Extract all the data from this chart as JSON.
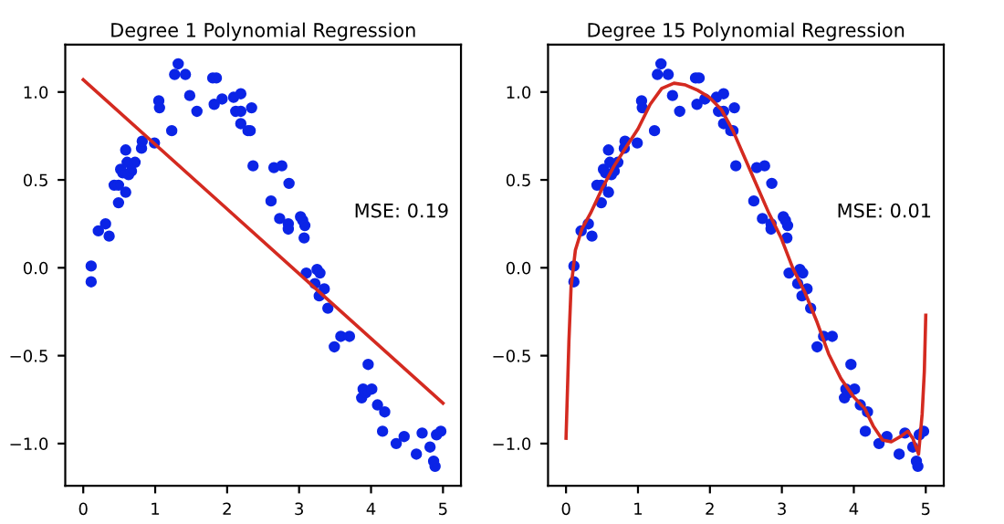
{
  "chart_data": [
    {
      "type": "scatter",
      "title": "Degree 1 Polynomial Regression",
      "annotations": [
        "MSE: 0.19"
      ],
      "xlim": [
        -0.25,
        5.25
      ],
      "ylim": [
        -1.24,
        1.27
      ],
      "xticks": [
        0,
        1,
        2,
        3,
        4,
        5
      ],
      "yticks": [
        {
          "value": -1.0,
          "label": "−1.0"
        },
        {
          "value": -0.5,
          "label": "−0.5"
        },
        {
          "value": 0,
          "label": "0.0"
        },
        {
          "value": 0.5,
          "label": "0.5"
        },
        {
          "value": 1.0,
          "label": "1.0"
        }
      ],
      "grid": false,
      "legend": false,
      "series": [
        {
          "marker": "circle",
          "color": "#0b24e6",
          "x": [
            0.11,
            0.11,
            0.21,
            0.31,
            0.36,
            0.43,
            0.49,
            0.49,
            0.52,
            0.55,
            0.59,
            0.59,
            0.61,
            0.63,
            0.67,
            0.72,
            0.81,
            0.82,
            0.99,
            1.05,
            1.06,
            1.23,
            1.27,
            1.32,
            1.42,
            1.48,
            1.58,
            1.8,
            1.85,
            1.82,
            1.93,
            2.09,
            2.19,
            2.12,
            2.19,
            2.19,
            2.29,
            2.32,
            2.34,
            2.36,
            2.61,
            2.65,
            2.76,
            2.73,
            2.85,
            2.85,
            2.86,
            3.02,
            3.05,
            3.08,
            3.07,
            3.1,
            3.22,
            3.25,
            3.29,
            3.28,
            3.35,
            3.4,
            3.49,
            3.58,
            3.7,
            3.87,
            3.89,
            3.93,
            3.96,
            4.01,
            4.09,
            4.19,
            4.16,
            4.35,
            4.46,
            4.63,
            4.71,
            4.82,
            4.87,
            4.89,
            4.91,
            4.97
          ],
          "values": [
            0.01,
            -0.08,
            0.21,
            0.25,
            0.18,
            0.47,
            0.47,
            0.37,
            0.56,
            0.54,
            0.67,
            0.43,
            0.6,
            0.53,
            0.55,
            0.6,
            0.68,
            0.72,
            0.71,
            0.95,
            0.91,
            0.78,
            1.1,
            1.16,
            1.1,
            0.98,
            0.89,
            1.08,
            1.08,
            0.93,
            0.96,
            0.97,
            0.99,
            0.89,
            0.89,
            0.82,
            0.78,
            0.78,
            0.91,
            0.58,
            0.38,
            0.57,
            0.58,
            0.28,
            0.25,
            0.22,
            0.48,
            0.29,
            0.27,
            0.24,
            0.17,
            -0.03,
            -0.09,
            -0.01,
            -0.03,
            -0.16,
            -0.12,
            -0.23,
            -0.45,
            -0.39,
            -0.39,
            -0.74,
            -0.69,
            -0.71,
            -0.55,
            -0.69,
            -0.78,
            -0.82,
            -0.93,
            -1.0,
            -0.96,
            -1.06,
            -0.94,
            -1.02,
            -1.1,
            -1.13,
            -0.95,
            -0.93
          ]
        },
        {
          "type": "line",
          "marker": "none",
          "line_style": "solid",
          "color": "#d42a20",
          "x": [
            0,
            5
          ],
          "values": [
            1.07,
            -0.77
          ]
        }
      ]
    },
    {
      "type": "scatter",
      "title": "Degree 15 Polynomial Regression",
      "annotations": [
        "MSE: 0.01"
      ],
      "xlim": [
        -0.25,
        5.25
      ],
      "ylim": [
        -1.24,
        1.27
      ],
      "xticks": [
        0,
        1,
        2,
        3,
        4,
        5
      ],
      "yticks": [
        {
          "value": -1.0,
          "label": "−1.0"
        },
        {
          "value": -0.5,
          "label": "−0.5"
        },
        {
          "value": 0,
          "label": "0.0"
        },
        {
          "value": 0.5,
          "label": "0.5"
        },
        {
          "value": 1.0,
          "label": "1.0"
        }
      ],
      "grid": false,
      "legend": false,
      "series": [
        {
          "marker": "circle",
          "color": "#0b24e6",
          "x": [
            0.11,
            0.11,
            0.21,
            0.31,
            0.36,
            0.43,
            0.49,
            0.49,
            0.52,
            0.55,
            0.59,
            0.59,
            0.61,
            0.63,
            0.67,
            0.72,
            0.81,
            0.82,
            0.99,
            1.05,
            1.06,
            1.23,
            1.27,
            1.32,
            1.42,
            1.48,
            1.58,
            1.8,
            1.85,
            1.82,
            1.93,
            2.09,
            2.19,
            2.12,
            2.19,
            2.19,
            2.29,
            2.32,
            2.34,
            2.36,
            2.61,
            2.65,
            2.76,
            2.73,
            2.85,
            2.85,
            2.86,
            3.02,
            3.05,
            3.08,
            3.07,
            3.1,
            3.22,
            3.25,
            3.29,
            3.28,
            3.35,
            3.4,
            3.49,
            3.58,
            3.7,
            3.87,
            3.89,
            3.93,
            3.96,
            4.01,
            4.09,
            4.19,
            4.16,
            4.35,
            4.46,
            4.63,
            4.71,
            4.82,
            4.87,
            4.89,
            4.91,
            4.97
          ],
          "values": [
            0.01,
            -0.08,
            0.21,
            0.25,
            0.18,
            0.47,
            0.47,
            0.37,
            0.56,
            0.54,
            0.67,
            0.43,
            0.6,
            0.53,
            0.55,
            0.6,
            0.68,
            0.72,
            0.71,
            0.95,
            0.91,
            0.78,
            1.1,
            1.16,
            1.1,
            0.98,
            0.89,
            1.08,
            1.08,
            0.93,
            0.96,
            0.97,
            0.99,
            0.89,
            0.89,
            0.82,
            0.78,
            0.78,
            0.91,
            0.58,
            0.38,
            0.57,
            0.58,
            0.28,
            0.25,
            0.22,
            0.48,
            0.29,
            0.27,
            0.24,
            0.17,
            -0.03,
            -0.09,
            -0.01,
            -0.03,
            -0.16,
            -0.12,
            -0.23,
            -0.45,
            -0.39,
            -0.39,
            -0.74,
            -0.69,
            -0.71,
            -0.55,
            -0.69,
            -0.78,
            -0.82,
            -0.93,
            -1.0,
            -0.96,
            -1.06,
            -0.94,
            -1.02,
            -1.1,
            -1.13,
            -0.95,
            -0.93
          ]
        },
        {
          "type": "line",
          "marker": "none",
          "line_style": "solid",
          "color": "#d42a20",
          "x": [
            0,
            0.04,
            0.07,
            0.13,
            0.22,
            0.34,
            0.5,
            0.67,
            0.84,
            1.0,
            1.17,
            1.33,
            1.5,
            1.66,
            1.83,
            1.99,
            2.16,
            2.32,
            2.49,
            2.66,
            2.82,
            2.99,
            3.15,
            3.32,
            3.49,
            3.65,
            3.82,
            3.99,
            4.15,
            4.27,
            4.4,
            4.52,
            4.65,
            4.75,
            4.82,
            4.9,
            4.95,
            4.98,
            5.0
          ],
          "values": [
            -0.97,
            -0.42,
            -0.11,
            0.1,
            0.22,
            0.31,
            0.45,
            0.58,
            0.69,
            0.79,
            0.93,
            1.02,
            1.05,
            1.04,
            1.01,
            0.97,
            0.9,
            0.78,
            0.62,
            0.46,
            0.31,
            0.17,
            0.0,
            -0.14,
            -0.31,
            -0.49,
            -0.63,
            -0.73,
            -0.8,
            -0.9,
            -0.98,
            -0.99,
            -0.96,
            -0.93,
            -0.97,
            -1.06,
            -0.83,
            -0.59,
            -0.27
          ]
        }
      ]
    }
  ]
}
